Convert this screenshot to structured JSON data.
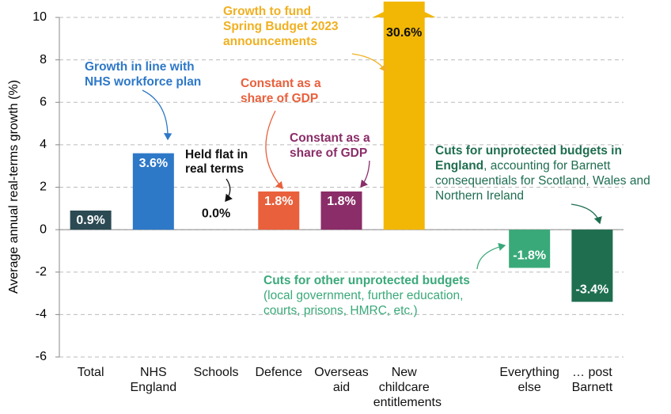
{
  "chart_data": {
    "type": "bar",
    "y_label": "Average annual real-terms growth (%)",
    "categories": [
      "Total",
      "NHS England",
      "Schools",
      "Defence",
      "Overseas aid",
      "New childcare entitlements",
      null,
      "Everything else",
      "… post Barnett"
    ],
    "values": [
      0.9,
      3.6,
      0.0,
      1.8,
      1.8,
      30.6,
      null,
      -1.8,
      -3.4
    ],
    "value_labels": [
      "0.9%",
      "3.6%",
      "0.0%",
      "1.8%",
      "1.8%",
      "30.6%",
      null,
      "-1.8%",
      "-3.4%"
    ],
    "colors": [
      "#2b4a53",
      "#2e78c8",
      "#2b4a53",
      "#e9603c",
      "#8a2d68",
      "#f2b705",
      null,
      "#3aa97a",
      "#1f6e50"
    ],
    "ylim": [
      -6,
      10
    ],
    "yticks": [
      -6,
      -4,
      -2,
      0,
      2,
      4,
      6,
      8,
      10
    ],
    "grid": true,
    "annotations": [
      {
        "color": "#f0b020",
        "bold_lines": [
          "Growth to fund",
          "Spring Budget 2023",
          "announcements"
        ]
      },
      {
        "color": "#2e78c8",
        "bold_lines": [
          "Growth in line with",
          "NHS workforce plan"
        ]
      },
      {
        "color": "#e9603c",
        "bold_lines": [
          "Constant as a",
          "share of GDP"
        ]
      },
      {
        "color": "#111111",
        "bold_lines": [
          "Held flat in",
          "real terms"
        ]
      },
      {
        "color": "#8a2d68",
        "bold_lines": [
          "Constant as a",
          "share of GDP"
        ]
      },
      {
        "color": "#1f6e50",
        "bold_lines": [
          "Cuts for unprotected budgets in",
          "England"
        ],
        "lines": [
          ", accounting for Barnett",
          "consequentials for Scotland, Wales and",
          "Northern Ireland"
        ]
      },
      {
        "color": "#3aa97a",
        "bold_lines": [
          "Cuts for other unprotected budgets"
        ],
        "lines": [
          "(local government, further education,",
          "courts, prisons, HMRC, etc.)"
        ]
      }
    ]
  }
}
